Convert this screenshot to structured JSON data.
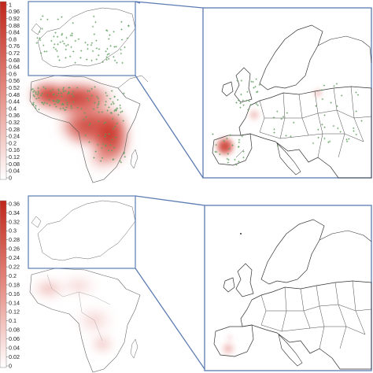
{
  "colors": {
    "heat_high": "#c0271b",
    "heat_low": "#ffffff",
    "point": "#5e9e5e",
    "zoom_frame": "#5b7bb2",
    "coast": "#333333"
  },
  "panels": [
    {
      "id": "top",
      "colorbar": {
        "ticks": [
          "1",
          "0.96",
          "0.92",
          "0.88",
          "0.84",
          "0.8",
          "0.76",
          "0.72",
          "0.68",
          "0.64",
          "0.6",
          "0.56",
          "0.52",
          "0.48",
          "0.44",
          "0.4",
          "0.36",
          "0.32",
          "0.28",
          "0.24",
          "0.2",
          "0.16",
          "0.12",
          "0.08",
          "0.04",
          "0"
        ],
        "max": 1,
        "min": 0
      },
      "overview_map": "europe-africa-density",
      "inset_map": "europe-zoom",
      "points_shown": true
    },
    {
      "id": "bottom",
      "colorbar": {
        "ticks": [
          "0.36",
          "0.34",
          "0.32",
          "0.3",
          "0.28",
          "0.26",
          "0.24",
          "0.22",
          "0.2",
          "0.18",
          "0.16",
          "0.14",
          "0.12",
          "0.1",
          "0.08",
          "0.06",
          "0.04",
          "0.02",
          "0"
        ],
        "max": 0.36,
        "min": 0
      },
      "overview_map": "europe-africa-density",
      "inset_map": "europe-zoom",
      "points_shown": false
    }
  ]
}
